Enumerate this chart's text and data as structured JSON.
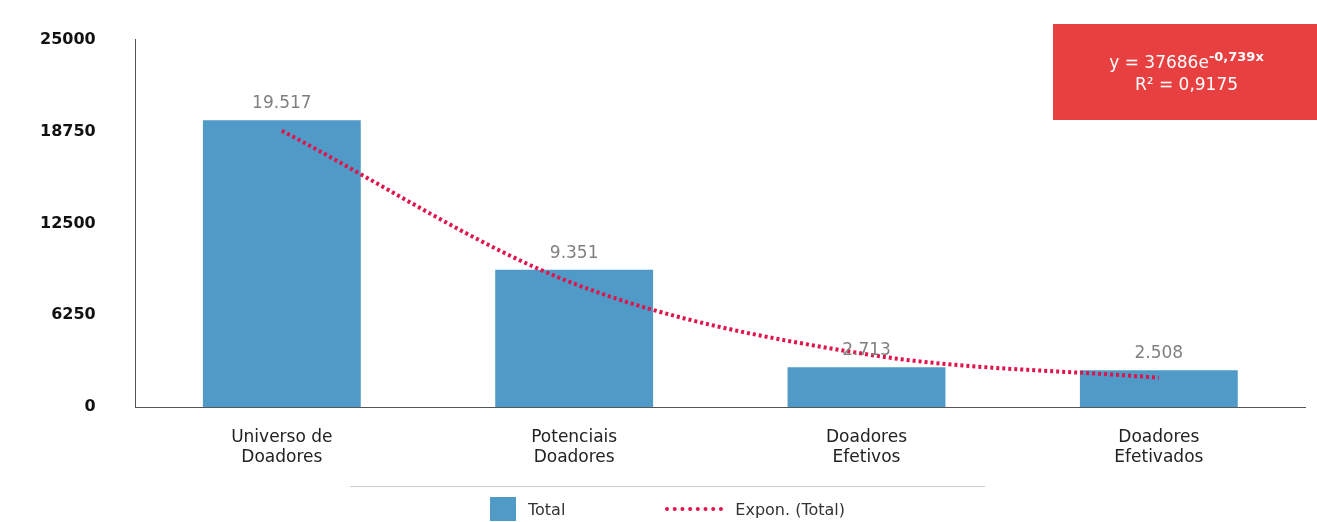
{
  "chart_data": {
    "type": "bar",
    "categories": [
      "Universo de\nDoadores",
      "Potenciais\nDoadores",
      "Doadores\nEfetivos",
      "Doadores\nEfetivados"
    ],
    "series": [
      {
        "name": "Total",
        "color": "#4f9ac6",
        "values": [
          19517,
          9351,
          2713,
          2508
        ],
        "value_labels": [
          "19.517",
          "9.351",
          "2.713",
          "2.508"
        ]
      },
      {
        "name": "Expon. (Total)",
        "type": "line",
        "color": "#e0144c",
        "line_style": "dotted",
        "marker": "none",
        "values": [
          18800,
          8400,
          3600,
          2000
        ]
      }
    ],
    "ylim": [
      0,
      25000
    ],
    "yticks": [
      0,
      6250,
      12500,
      18750,
      25000
    ],
    "grid": false,
    "legend": "bottom",
    "annotations": [
      "y = 37686e$^{-0,739x}$",
      "R² = 0,9175"
    ]
  }
}
